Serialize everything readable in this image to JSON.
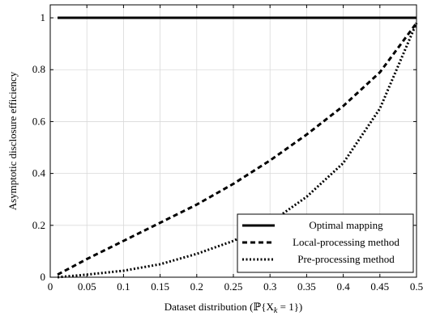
{
  "chart_data": {
    "type": "line",
    "title": "",
    "xlabel": "Dataset distribution (ℙ{X",
    "xlabel_sub": "k",
    "xlabel_tail": " = 1})",
    "ylabel": "Asymptotic disclosure efficiency",
    "xlim": [
      0,
      0.5
    ],
    "ylim": [
      0,
      1.05
    ],
    "x_ticks": [
      0,
      0.05,
      0.1,
      0.15,
      0.2,
      0.25,
      0.3,
      0.35,
      0.4,
      0.45,
      0.5
    ],
    "x_tick_labels": [
      "0",
      "0.05",
      "0.1",
      "0.15",
      "0.2",
      "0.25",
      "0.3",
      "0.35",
      "0.4",
      "0.45",
      "0.5"
    ],
    "y_ticks": [
      0,
      0.2,
      0.4,
      0.6,
      0.8,
      1
    ],
    "y_tick_labels": [
      "0",
      "0.2",
      "0.4",
      "0.6",
      "0.8",
      "1"
    ],
    "grid": true,
    "legend_position": "bottom-right",
    "series": [
      {
        "name": "Optimal mapping",
        "style": "solid",
        "color": "#000000",
        "x": [
          0.01,
          0.1,
          0.2,
          0.3,
          0.4,
          0.5
        ],
        "y": [
          1,
          1,
          1,
          1,
          1,
          1
        ]
      },
      {
        "name": "Local-processing method",
        "style": "dashed",
        "color": "#000000",
        "x": [
          0.01,
          0.05,
          0.1,
          0.15,
          0.2,
          0.25,
          0.3,
          0.35,
          0.4,
          0.45,
          0.5
        ],
        "y": [
          0.01,
          0.07,
          0.14,
          0.21,
          0.28,
          0.36,
          0.45,
          0.55,
          0.66,
          0.79,
          0.98
        ]
      },
      {
        "name": "Pre-processing method",
        "style": "dotted",
        "color": "#000000",
        "x": [
          0.01,
          0.05,
          0.1,
          0.15,
          0.2,
          0.25,
          0.3,
          0.35,
          0.4,
          0.45,
          0.5
        ],
        "y": [
          0.0,
          0.01,
          0.025,
          0.05,
          0.09,
          0.14,
          0.21,
          0.31,
          0.44,
          0.65,
          0.98
        ]
      }
    ]
  }
}
